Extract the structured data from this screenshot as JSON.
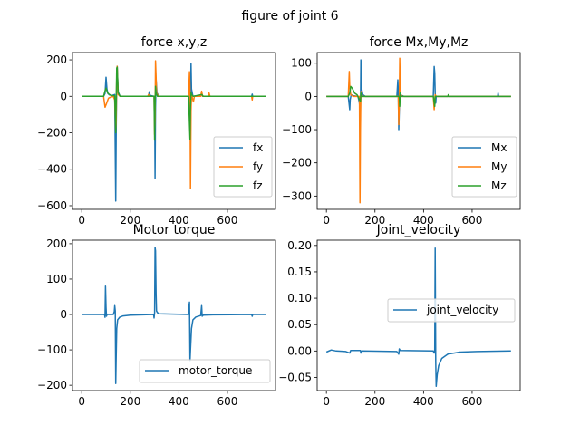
{
  "figure_title": "figure of joint 6",
  "colors": {
    "blue": "#1f77b4",
    "orange": "#ff7f0e",
    "green": "#2ca02c"
  },
  "chart_data": [
    {
      "type": "line",
      "title": "force x,y,z",
      "xlim": [
        -38,
        798
      ],
      "ylim": [
        -620,
        240
      ],
      "xticks": [
        0,
        200,
        400,
        600
      ],
      "yticks": [
        200,
        0,
        -200,
        -400,
        -600
      ],
      "ytick_labels": [
        "200",
        "0",
        "−200",
        "−400",
        "−600"
      ],
      "legend_loc": "lower-right",
      "series": [
        {
          "name": "fx",
          "color": "#1f77b4",
          "points": [
            [
              0,
              0
            ],
            [
              90,
              0
            ],
            [
              96,
              15
            ],
            [
              100,
              105
            ],
            [
              104,
              40
            ],
            [
              108,
              15
            ],
            [
              114,
              8
            ],
            [
              124,
              4
            ],
            [
              136,
              10
            ],
            [
              140,
              -575
            ],
            [
              142,
              -200
            ],
            [
              144,
              100
            ],
            [
              146,
              165
            ],
            [
              150,
              25
            ],
            [
              158,
              0
            ],
            [
              275,
              0
            ],
            [
              278,
              25
            ],
            [
              282,
              5
            ],
            [
              300,
              0
            ],
            [
              302,
              -450
            ],
            [
              304,
              -60
            ],
            [
              306,
              95
            ],
            [
              310,
              20
            ],
            [
              318,
              0
            ],
            [
              440,
              0
            ],
            [
              446,
              -120
            ],
            [
              448,
              -80
            ],
            [
              450,
              180
            ],
            [
              452,
              40
            ],
            [
              458,
              0
            ],
            [
              495,
              8
            ],
            [
              498,
              0
            ],
            [
              700,
              0
            ],
            [
              702,
              12
            ],
            [
              704,
              0
            ],
            [
              760,
              0
            ]
          ]
        },
        {
          "name": "fy",
          "color": "#ff7f0e",
          "points": [
            [
              0,
              0
            ],
            [
              90,
              0
            ],
            [
              96,
              -60
            ],
            [
              102,
              -40
            ],
            [
              110,
              -10
            ],
            [
              118,
              -5
            ],
            [
              130,
              0
            ],
            [
              136,
              -20
            ],
            [
              140,
              -190
            ],
            [
              142,
              -140
            ],
            [
              144,
              120
            ],
            [
              146,
              165
            ],
            [
              150,
              10
            ],
            [
              158,
              0
            ],
            [
              272,
              0
            ],
            [
              275,
              10
            ],
            [
              278,
              0
            ],
            [
              298,
              0
            ],
            [
              300,
              -210
            ],
            [
              302,
              -120
            ],
            [
              304,
              195
            ],
            [
              306,
              110
            ],
            [
              308,
              20
            ],
            [
              316,
              0
            ],
            [
              440,
              0
            ],
            [
              444,
              135
            ],
            [
              446,
              20
            ],
            [
              448,
              -505
            ],
            [
              450,
              -80
            ],
            [
              452,
              10
            ],
            [
              460,
              -30
            ],
            [
              464,
              0
            ],
            [
              490,
              0
            ],
            [
              494,
              28
            ],
            [
              498,
              0
            ],
            [
              520,
              0
            ],
            [
              524,
              20
            ],
            [
              528,
              0
            ],
            [
              700,
              0
            ],
            [
              702,
              -20
            ],
            [
              704,
              0
            ],
            [
              760,
              0
            ]
          ]
        },
        {
          "name": "fz",
          "color": "#2ca02c",
          "points": [
            [
              0,
              0
            ],
            [
              90,
              0
            ],
            [
              96,
              30
            ],
            [
              100,
              45
            ],
            [
              106,
              20
            ],
            [
              114,
              10
            ],
            [
              124,
              5
            ],
            [
              136,
              2
            ],
            [
              140,
              -200
            ],
            [
              142,
              -40
            ],
            [
              144,
              155
            ],
            [
              146,
              160
            ],
            [
              150,
              20
            ],
            [
              158,
              0
            ],
            [
              298,
              0
            ],
            [
              300,
              -240
            ],
            [
              302,
              -60
            ],
            [
              304,
              55
            ],
            [
              306,
              20
            ],
            [
              312,
              0
            ],
            [
              440,
              0
            ],
            [
              446,
              -235
            ],
            [
              448,
              -60
            ],
            [
              450,
              20
            ],
            [
              452,
              10
            ],
            [
              460,
              0
            ],
            [
              495,
              10
            ],
            [
              500,
              0
            ],
            [
              760,
              0
            ]
          ]
        }
      ]
    },
    {
      "type": "line",
      "title": "force Mx,My,Mz",
      "xlim": [
        -38,
        798
      ],
      "ylim": [
        -340,
        132
      ],
      "xticks": [
        0,
        200,
        400,
        600
      ],
      "yticks": [
        100,
        0,
        -100,
        -200,
        -300
      ],
      "ytick_labels": [
        "100",
        "0",
        "−100",
        "−200",
        "−300"
      ],
      "legend_loc": "lower-right",
      "series": [
        {
          "name": "Mx",
          "color": "#1f77b4",
          "points": [
            [
              0,
              0
            ],
            [
              90,
              0
            ],
            [
              96,
              -40
            ],
            [
              98,
              -10
            ],
            [
              102,
              5
            ],
            [
              110,
              2
            ],
            [
              130,
              0
            ],
            [
              136,
              -20
            ],
            [
              140,
              -60
            ],
            [
              142,
              110
            ],
            [
              144,
              60
            ],
            [
              146,
              20
            ],
            [
              150,
              5
            ],
            [
              160,
              0
            ],
            [
              290,
              0
            ],
            [
              294,
              50
            ],
            [
              296,
              10
            ],
            [
              298,
              -100
            ],
            [
              300,
              -40
            ],
            [
              302,
              20
            ],
            [
              304,
              5
            ],
            [
              320,
              0
            ],
            [
              440,
              0
            ],
            [
              444,
              90
            ],
            [
              446,
              70
            ],
            [
              448,
              10
            ],
            [
              450,
              -20
            ],
            [
              452,
              0
            ],
            [
              705,
              0
            ],
            [
              707,
              10
            ],
            [
              709,
              0
            ],
            [
              760,
              0
            ]
          ]
        },
        {
          "name": "My",
          "color": "#ff7f0e",
          "points": [
            [
              0,
              0
            ],
            [
              90,
              0
            ],
            [
              94,
              75
            ],
            [
              96,
              30
            ],
            [
              100,
              5
            ],
            [
              110,
              0
            ],
            [
              136,
              0
            ],
            [
              138,
              -320
            ],
            [
              140,
              -100
            ],
            [
              142,
              10
            ],
            [
              144,
              15
            ],
            [
              148,
              0
            ],
            [
              296,
              0
            ],
            [
              298,
              -85
            ],
            [
              300,
              -20
            ],
            [
              302,
              115
            ],
            [
              304,
              30
            ],
            [
              306,
              5
            ],
            [
              312,
              0
            ],
            [
              440,
              0
            ],
            [
              444,
              -40
            ],
            [
              446,
              -10
            ],
            [
              448,
              5
            ],
            [
              452,
              0
            ],
            [
              760,
              0
            ]
          ]
        },
        {
          "name": "Mz",
          "color": "#2ca02c",
          "points": [
            [
              0,
              0
            ],
            [
              90,
              0
            ],
            [
              96,
              10
            ],
            [
              100,
              30
            ],
            [
              106,
              25
            ],
            [
              116,
              10
            ],
            [
              126,
              5
            ],
            [
              140,
              -15
            ],
            [
              142,
              10
            ],
            [
              146,
              0
            ],
            [
              300,
              0
            ],
            [
              302,
              -30
            ],
            [
              304,
              10
            ],
            [
              306,
              0
            ],
            [
              440,
              0
            ],
            [
              446,
              -30
            ],
            [
              448,
              0
            ],
            [
              500,
              0
            ],
            [
              502,
              5
            ],
            [
              504,
              0
            ],
            [
              760,
              0
            ]
          ]
        }
      ]
    },
    {
      "type": "line",
      "title": "Motor torque",
      "xlim": [
        -38,
        798
      ],
      "ylim": [
        -215,
        210
      ],
      "xticks": [
        0,
        200,
        400,
        600
      ],
      "yticks": [
        200,
        100,
        0,
        -100,
        -200
      ],
      "ytick_labels": [
        "200",
        "100",
        "0",
        "−100",
        "−200"
      ],
      "legend_loc": "lower-right",
      "series": [
        {
          "name": "motor_torque",
          "color": "#1f77b4",
          "points": [
            [
              0,
              0
            ],
            [
              94,
              0
            ],
            [
              96,
              -8
            ],
            [
              98,
              80
            ],
            [
              100,
              20
            ],
            [
              102,
              -5
            ],
            [
              104,
              0
            ],
            [
              130,
              0
            ],
            [
              134,
              8
            ],
            [
              136,
              25
            ],
            [
              138,
              10
            ],
            [
              140,
              -195
            ],
            [
              142,
              -120
            ],
            [
              144,
              -40
            ],
            [
              148,
              -15
            ],
            [
              156,
              -8
            ],
            [
              170,
              -4
            ],
            [
              200,
              -2
            ],
            [
              250,
              -1
            ],
            [
              296,
              0
            ],
            [
              298,
              -10
            ],
            [
              300,
              5
            ],
            [
              302,
              190
            ],
            [
              304,
              180
            ],
            [
              306,
              60
            ],
            [
              308,
              10
            ],
            [
              312,
              5
            ],
            [
              320,
              2
            ],
            [
              440,
              0
            ],
            [
              442,
              25
            ],
            [
              444,
              35
            ],
            [
              446,
              -130
            ],
            [
              448,
              -100
            ],
            [
              452,
              -40
            ],
            [
              458,
              -15
            ],
            [
              470,
              -7
            ],
            [
              490,
              -3
            ],
            [
              494,
              25
            ],
            [
              496,
              -5
            ],
            [
              500,
              -2
            ],
            [
              540,
              -1
            ],
            [
              700,
              0
            ],
            [
              702,
              -5
            ],
            [
              704,
              0
            ],
            [
              760,
              0
            ]
          ]
        }
      ]
    },
    {
      "type": "line",
      "title": "Joint_velocity",
      "xlim": [
        -38,
        798
      ],
      "ylim": [
        -0.075,
        0.21
      ],
      "xticks": [
        0,
        200,
        400,
        600
      ],
      "yticks": [
        0.2,
        0.15,
        0.1,
        0.05,
        0.0,
        -0.05
      ],
      "ytick_labels": [
        "0.20",
        "0.15",
        "0.10",
        "0.05",
        "0.00",
        "−0.05"
      ],
      "legend_loc": "upper-right",
      "series": [
        {
          "name": "joint_velocity",
          "color": "#1f77b4",
          "points": [
            [
              0,
              -0.002
            ],
            [
              20,
              0.002
            ],
            [
              40,
              0
            ],
            [
              80,
              -0.001
            ],
            [
              96,
              -0.004
            ],
            [
              100,
              0.001
            ],
            [
              140,
              0.001
            ],
            [
              142,
              -0.004
            ],
            [
              146,
              0
            ],
            [
              290,
              -0.001
            ],
            [
              298,
              -0.006
            ],
            [
              300,
              0.004
            ],
            [
              304,
              0.001
            ],
            [
              440,
              0
            ],
            [
              444,
              -0.004
            ],
            [
              446,
              -0.003
            ],
            [
              448,
              0.195
            ],
            [
              450,
              -0.02
            ],
            [
              452,
              -0.067
            ],
            [
              456,
              -0.045
            ],
            [
              462,
              -0.028
            ],
            [
              475,
              -0.014
            ],
            [
              500,
              -0.006
            ],
            [
              550,
              -0.002
            ],
            [
              620,
              -0.001
            ],
            [
              760,
              0
            ]
          ]
        }
      ]
    }
  ]
}
